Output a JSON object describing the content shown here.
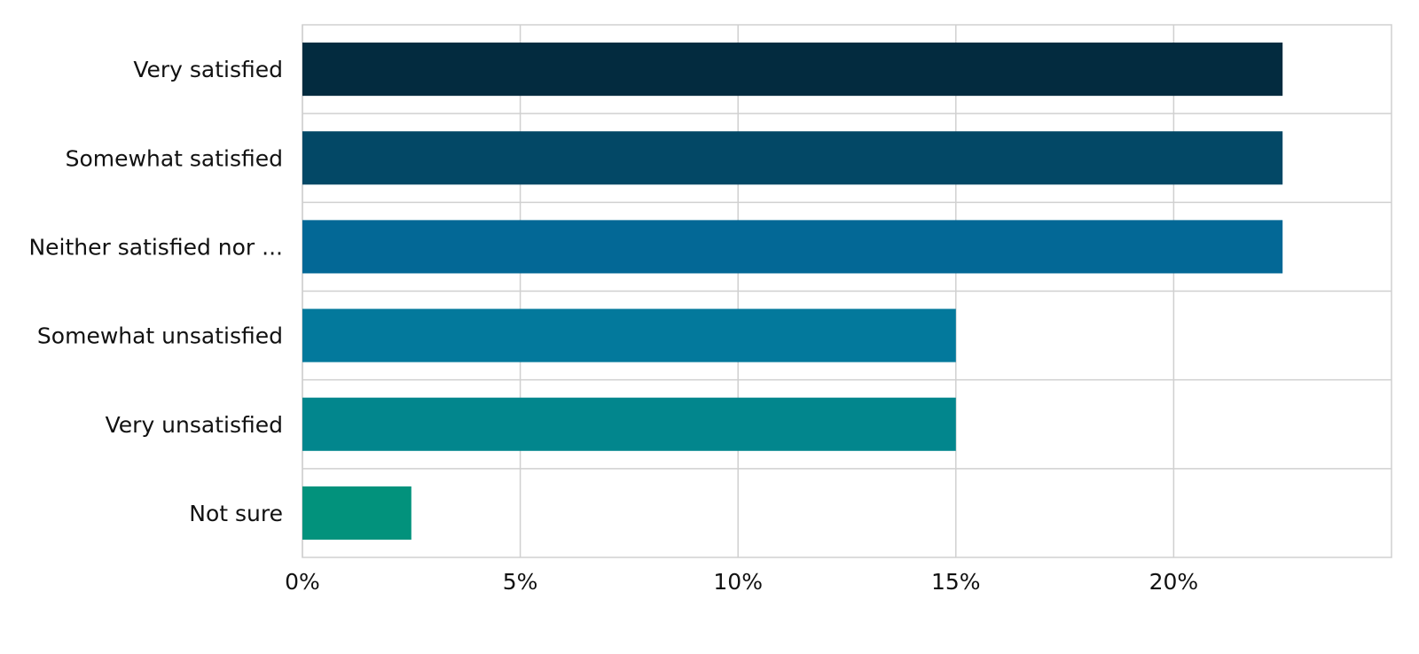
{
  "chart_data": {
    "type": "bar",
    "orientation": "horizontal",
    "title": "",
    "xlabel": "",
    "ylabel": "",
    "categories": [
      "Very satisfied",
      "Somewhat satisfied",
      "Neither satisfied nor ...",
      "Somewhat unsatisfied",
      "Very unsatisfied",
      "Not sure"
    ],
    "values": [
      22.5,
      22.5,
      22.5,
      15.0,
      15.0,
      2.5
    ],
    "colors": [
      "#032b3f",
      "#034866",
      "#036896",
      "#03799c",
      "#02868d",
      "#02927c"
    ],
    "xlim": [
      0,
      25
    ],
    "xticks": [
      0,
      5,
      10,
      15,
      20
    ],
    "xtick_labels": [
      "0%",
      "5%",
      "10%",
      "15%",
      "20%"
    ],
    "grid": true,
    "legend": "none"
  }
}
